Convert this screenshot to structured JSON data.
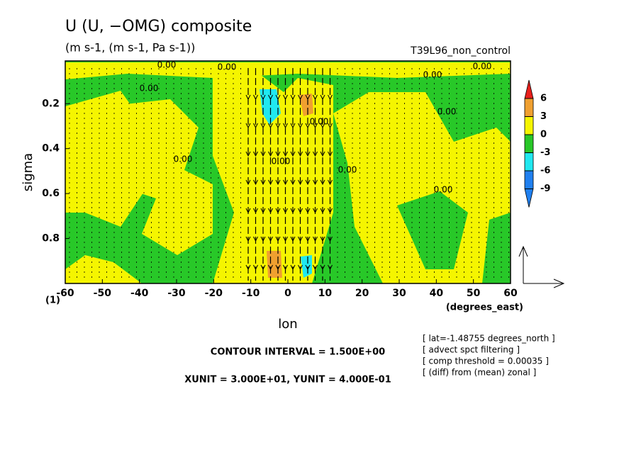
{
  "chart_data": {
    "type": "contour",
    "title": "U (U, −OMG) composite",
    "subtitle": "(m s-1, (m s-1, Pa s-1))",
    "run_label": "T39L96_non_control",
    "xlabel": "lon",
    "x_unit_label": "(degrees_east)",
    "ylabel": "sigma",
    "corner_label": "(1)",
    "xlim": [
      -60,
      60
    ],
    "xticks": [
      -60,
      -50,
      -40,
      -30,
      -20,
      -10,
      0,
      10,
      20,
      30,
      40,
      50,
      60
    ],
    "ylim": [
      1,
      0.01
    ],
    "yticks": [
      0.2,
      0.4,
      0.6,
      0.8
    ],
    "contour_label": "0.00",
    "colorbar": {
      "levels": [
        6,
        3,
        0,
        -3,
        -6,
        -9
      ],
      "colors": [
        "#e8201c",
        "#f0a030",
        "#f5f500",
        "#28c828",
        "#20e8f0",
        "#2080f0"
      ]
    },
    "contour_interval": "CONTOUR INTERVAL = 1.500E+00",
    "units_note": "XUNIT = 3.000E+01, YUNIT = 4.000E-01",
    "info_lines": [
      "[ lat=-1.48755 degrees_north ]",
      "[ advect spct filtering ]",
      "[ comp threshold = 0.00035 ]",
      "[ (diff) from (mean) zonal ]"
    ]
  }
}
